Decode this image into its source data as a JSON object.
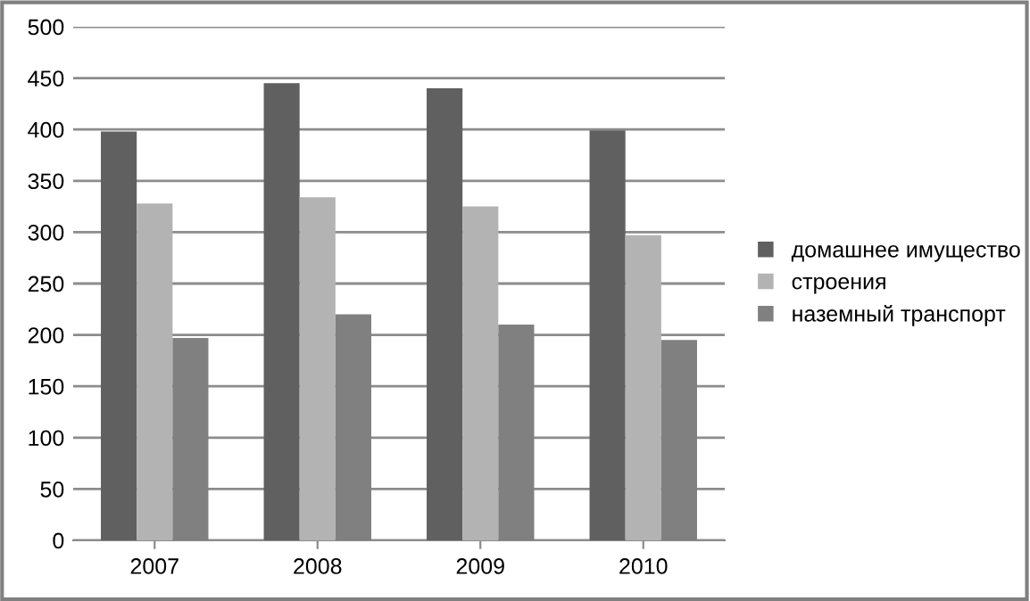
{
  "chart_data": {
    "type": "bar",
    "categories": [
      "2007",
      "2008",
      "2009",
      "2010"
    ],
    "series": [
      {
        "name": "домашнее имущество",
        "color": "#606060",
        "values": [
          398,
          445,
          440,
          399
        ]
      },
      {
        "name": "строения",
        "color": "#b3b3b3",
        "values": [
          328,
          334,
          325,
          297
        ]
      },
      {
        "name": "наземный транспорт",
        "color": "#808080",
        "values": [
          197,
          220,
          210,
          195
        ]
      }
    ],
    "ylim": [
      0,
      500
    ],
    "yticks": [
      0,
      50,
      100,
      150,
      200,
      250,
      300,
      350,
      400,
      450,
      500
    ],
    "grid": "y",
    "legend": "right"
  }
}
